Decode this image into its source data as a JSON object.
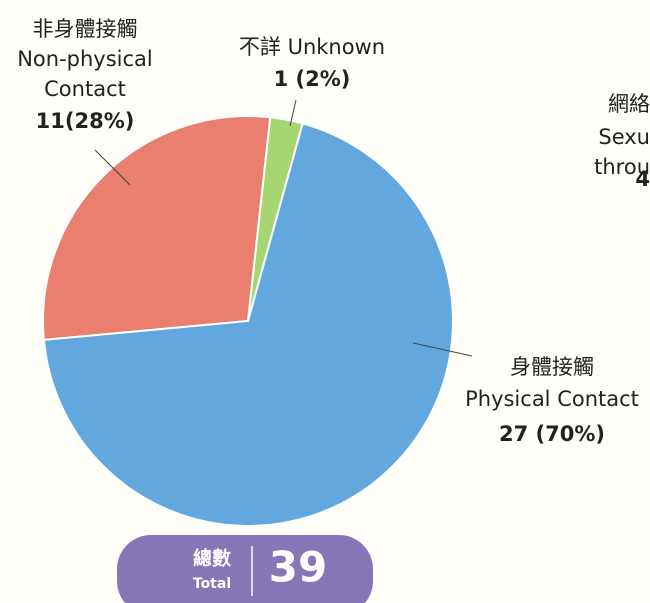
{
  "chart_data": {
    "type": "pie",
    "categories": [
      [
        "非身體接觸",
        "Non-physical",
        "Contact"
      ],
      [
        "不詳 Unknown"
      ],
      [
        "身體接觸",
        "Physical Contact"
      ]
    ],
    "values": [
      11,
      1,
      27
    ],
    "value_labels": [
      "11(28%)",
      "1 (2%)",
      "27 (70%)"
    ],
    "colors": [
      "#ea7f70",
      "#a6d672",
      "#62a8de"
    ],
    "total": {
      "label_zh": "總數",
      "label_en": "Total",
      "value": 39
    },
    "cropped_text": [
      "網絡",
      "Sexu",
      "throu",
      "4"
    ]
  }
}
